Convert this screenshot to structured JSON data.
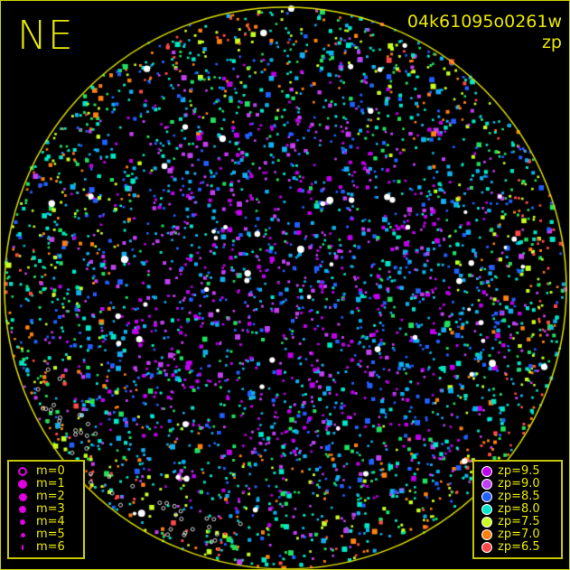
{
  "header": {
    "direction_label": "NE",
    "image_id": "04k61095o0261w",
    "mode": "zp"
  },
  "magnitude_legend": {
    "color": "#e000e0",
    "items": [
      {
        "label": "m=0",
        "style": "ring"
      },
      {
        "label": "m=1",
        "style": "filled"
      },
      {
        "label": "m=2",
        "style": "filled"
      },
      {
        "label": "m=3",
        "style": "filled"
      },
      {
        "label": "m=4",
        "style": "filled"
      },
      {
        "label": "m=5",
        "style": "filled"
      },
      {
        "label": "m=6",
        "style": "filled"
      }
    ]
  },
  "zp_legend": {
    "items": [
      {
        "label": "zp=9.5",
        "color": "#c000f0"
      },
      {
        "label": "zp=9.0",
        "color": "#c040f0"
      },
      {
        "label": "zp=8.5",
        "color": "#2060ff"
      },
      {
        "label": "zp=8.0",
        "color": "#00e8c8"
      },
      {
        "label": "zp=7.5",
        "color": "#c8ff20"
      },
      {
        "label": "zp=7.0",
        "color": "#ff8010"
      },
      {
        "label": "zp=6.5",
        "color": "#ff4848"
      }
    ]
  },
  "colors": {
    "horizon_circle": "#e0e000",
    "text": "#e8e800",
    "saturated_star": "#ffffff"
  }
}
